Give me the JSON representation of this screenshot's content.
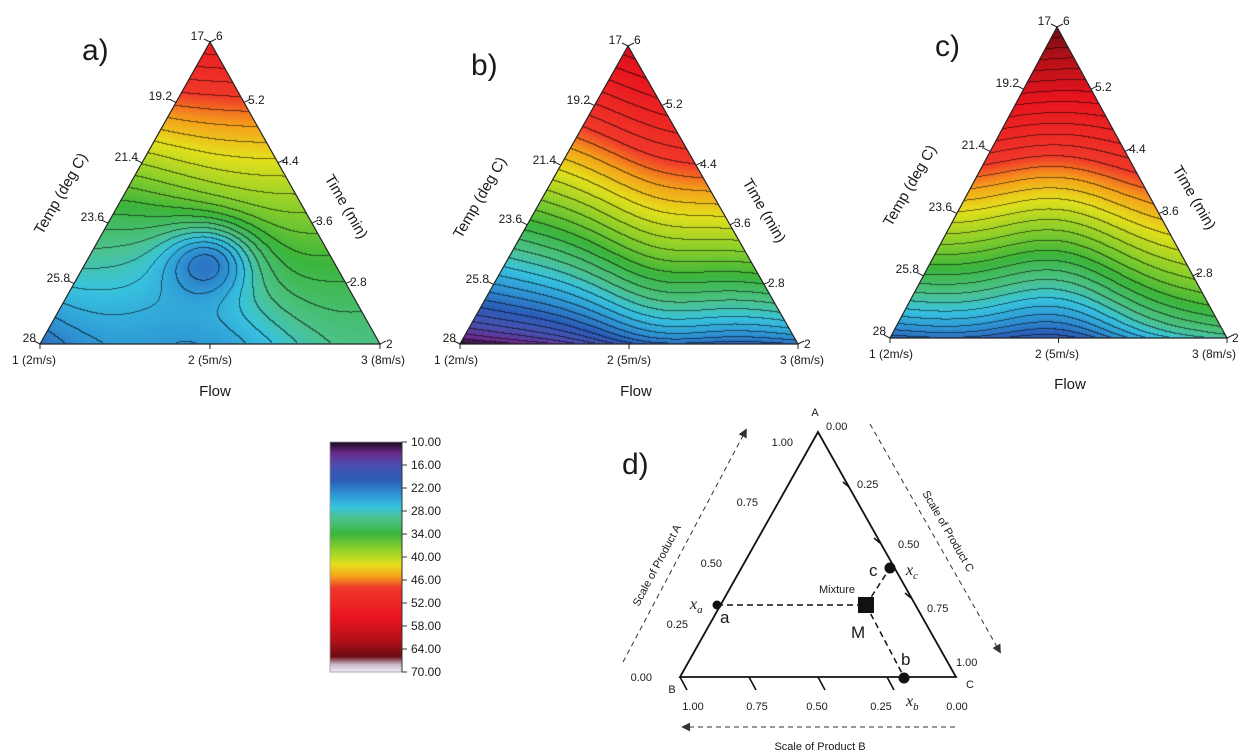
{
  "chart_data": [
    {
      "type": "heatmap",
      "panel_label": "a)",
      "left_axis_title": "Temp (deg C)",
      "left_axis_ticks": [
        "17",
        "19.2",
        "21.4",
        "23.6",
        "25.8",
        "28"
      ],
      "right_axis_title": "Time (min)",
      "right_axis_ticks": [
        "6",
        "5.2",
        "4.4",
        "3.6",
        "2.8",
        "2"
      ],
      "bottom_axis_title": "Flow",
      "bottom_axis_ticks": [
        "1 (2m/s)",
        "2 (5m/s)",
        "3 (8m/s)"
      ],
      "surface": {
        "apex": 55,
        "left_corner": 18,
        "center": 25,
        "right_corner": 30,
        "minimum": {
          "flow": 1.85,
          "temp": 25.2,
          "time": 3.0,
          "value": 18
        },
        "trend": "red at top apex, green band on right side, blue basin with closed minimum at lower left-center"
      }
    },
    {
      "type": "heatmap",
      "panel_label": "b)",
      "left_axis_title": "Temp (deg C)",
      "left_axis_ticks": [
        "17",
        "19.2",
        "21.4",
        "23.6",
        "25.8",
        "28"
      ],
      "right_axis_title": "Time (min)",
      "right_axis_ticks": [
        "6",
        "5.2",
        "4.4",
        "3.6",
        "2.8",
        "2"
      ],
      "bottom_axis_title": "Flow",
      "bottom_axis_ticks": [
        "1 (2m/s)",
        "2 (5m/s)",
        "3 (8m/s)"
      ],
      "surface": {
        "apex": 55,
        "left_corner": 14,
        "center": 24,
        "right_corner": 20,
        "trend": "red upper half, yellow-green band, blue to purple along the base"
      }
    },
    {
      "type": "heatmap",
      "panel_label": "c)",
      "left_axis_title": "Temp (deg C)",
      "left_axis_ticks": [
        "17",
        "19.2",
        "21.4",
        "23.6",
        "25.8",
        "28"
      ],
      "right_axis_title": "Time (min)",
      "right_axis_ticks": [
        "6",
        "5.2",
        "4.4",
        "3.6",
        "2.8",
        "2"
      ],
      "bottom_axis_title": "Flow",
      "bottom_axis_ticks": [
        "1 (2m/s)",
        "2 (5m/s)",
        "3 (8m/s)"
      ],
      "surface": {
        "apex": 64,
        "left_corner": 18,
        "center": 14,
        "right_corner": 30,
        "trend": "dark red at apex, red and yellow upper region, green band, blue to purple near bottom center"
      }
    }
  ],
  "colorbar": {
    "ticks": [
      "10.00",
      "16.00",
      "22.00",
      "28.00",
      "34.00",
      "40.00",
      "46.00",
      "52.00",
      "58.00",
      "64.00",
      "70.00"
    ],
    "min": 10,
    "max": 70,
    "stops": [
      {
        "value": 10,
        "color": "#1b0a1e"
      },
      {
        "value": 13,
        "color": "#6a2c8e"
      },
      {
        "value": 16,
        "color": "#4a4fae"
      },
      {
        "value": 20,
        "color": "#2a5db8"
      },
      {
        "value": 24,
        "color": "#2f9ad6"
      },
      {
        "value": 27,
        "color": "#38c3de"
      },
      {
        "value": 30,
        "color": "#4cc28a"
      },
      {
        "value": 34,
        "color": "#3cb53c"
      },
      {
        "value": 38,
        "color": "#8ed02a"
      },
      {
        "value": 42,
        "color": "#e4e01c"
      },
      {
        "value": 45,
        "color": "#f5a41a"
      },
      {
        "value": 48,
        "color": "#f0382a"
      },
      {
        "value": 56,
        "color": "#e8141e"
      },
      {
        "value": 62,
        "color": "#b01018"
      },
      {
        "value": 66,
        "color": "#6a0d12"
      },
      {
        "value": 68,
        "color": "#c9b8c8"
      },
      {
        "value": 70,
        "color": "#f0eaf0"
      }
    ]
  },
  "diagram": {
    "panel_label": "d)",
    "corner_a": "A",
    "corner_b": "B",
    "corner_c": "C",
    "scale_a_title": "Scale of Product A",
    "scale_b_title": "Scale of Product B",
    "scale_c_title": "Scale of Product C",
    "ticks_a": [
      "1.00",
      "0.75",
      "0.50",
      "0.25",
      "0.00"
    ],
    "ticks_b": [
      "1.00",
      "0.75",
      "0.50",
      "0.25",
      "0.00"
    ],
    "ticks_c": [
      "0.00",
      "0.25",
      "0.50",
      "0.75",
      "1.00"
    ],
    "mixture_label": "Mixture",
    "point_m": "M",
    "point_a": "a",
    "point_b": "b",
    "point_c": "c",
    "xa_label": "x",
    "xa_sub": "a",
    "xb_label": "x",
    "xb_sub": "b",
    "xc_label": "x",
    "xc_sub": "c",
    "mixture": {
      "a": 0.33,
      "b": 0.16,
      "c": 0.51
    }
  }
}
